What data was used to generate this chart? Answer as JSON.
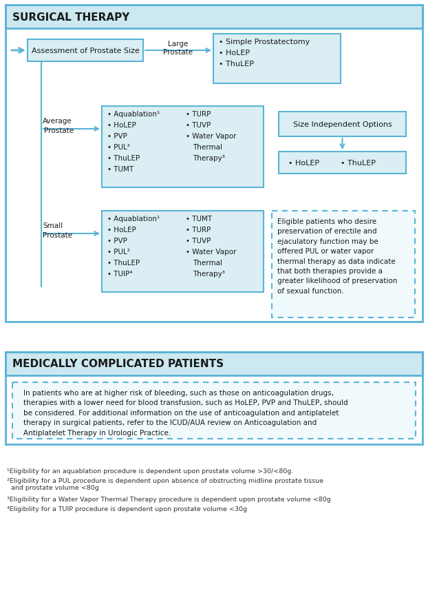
{
  "title_surgical": "SURGICAL THERAPY",
  "title_medical": "MEDICALLY COMPLICATED PATIENTS",
  "bg_color": "#ffffff",
  "box_fill_light": "#daeef3",
  "box_fill_header": "#cce8f0",
  "box_border": "#5ab4d6",
  "arrow_color": "#5ab4d6",
  "text_color": "#1a1a1a",
  "footnote_color": "#333333",
  "footnotes": [
    "¹Eligibility for an aquablation procedure is dependent upon prostate volume >30/<80g.",
    "²Eligibility for a PUL procedure is dependent upon absence of obstructing midline prostate tissue\n  and prostate volume <80g",
    "³Eligibility for a Water Vapor Thermal Therapy procedure is dependent upon prostate volume <80g",
    "⁴Eligibility for a TUIP procedure is dependent upon prostate volume <30g"
  ],
  "medically_text": "In patients who are at higher risk of bleeding, such as those on anticoagulation drugs,\ntherapies with a lower need for blood transfusion, such as HoLEP, PVP and ThuLEP, should\nbe considered. For additional information on the use of anticoagulation and antiplatelet\ntherapy in surgical patients, refer to the ICUD/AUA review on Anticoagulation and\nAntiplatelet Therapy in Urologic Practice."
}
